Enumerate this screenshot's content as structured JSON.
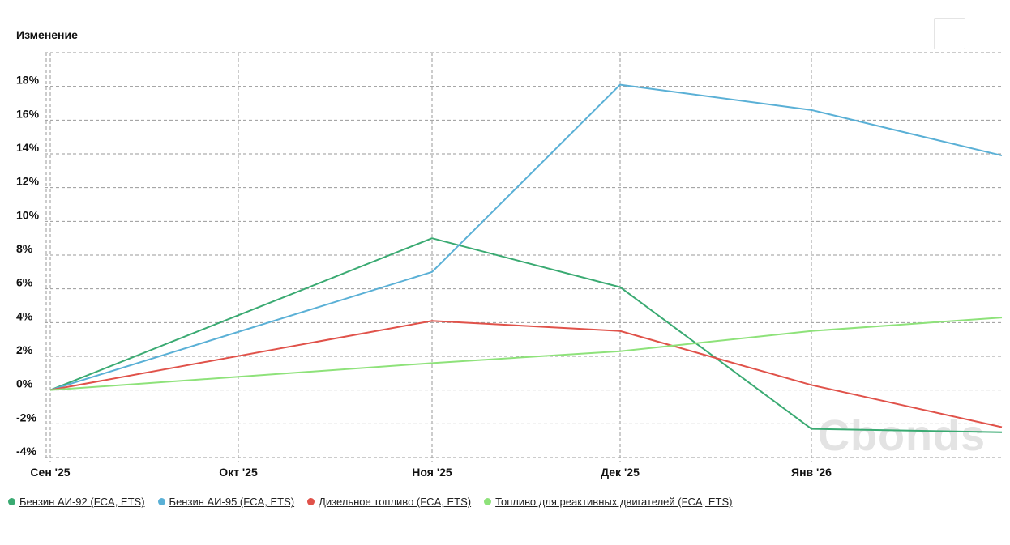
{
  "chart_data": {
    "type": "line",
    "ylabel": "Изменение",
    "x": [
      "Сен '25",
      "Окт '25",
      "Ноя '25",
      "Дек '25",
      "Янв '26",
      ""
    ],
    "x_ticks": [
      "Сен '25",
      "Окт '25",
      "Ноя '25",
      "Дек '25",
      "Янв '26"
    ],
    "y_ticks": [
      "-4%",
      "-2%",
      "0%",
      "2%",
      "4%",
      "6%",
      "8%",
      "10%",
      "12%",
      "14%",
      "16%",
      "18%"
    ],
    "ylim": [
      -4,
      20
    ],
    "grid": true,
    "legend_position": "bottom-left",
    "series": [
      {
        "name": "Бензин АИ-92 (FCA, ETS)",
        "color": "#3aaa72",
        "points": [
          [
            "Сен '25",
            0.0
          ],
          [
            "Ноя '25",
            9.0
          ],
          [
            "Дек '25",
            6.1
          ],
          [
            "Янв '26",
            -2.3
          ],
          [
            "",
            -2.5
          ]
        ]
      },
      {
        "name": "Бензин АИ-95 (FCA, ETS)",
        "color": "#5ab0d6",
        "points": [
          [
            "Сен '25",
            0.0
          ],
          [
            "Ноя '25",
            7.0
          ],
          [
            "Дек '25",
            18.1
          ],
          [
            "Янв '26",
            16.6
          ],
          [
            "",
            13.9
          ]
        ]
      },
      {
        "name": "Дизельное топливо (FCA, ETS)",
        "color": "#e0524a",
        "points": [
          [
            "Сен '25",
            0.0
          ],
          [
            "Ноя '25",
            4.1
          ],
          [
            "Дек '25",
            3.5
          ],
          [
            "Янв '26",
            0.3
          ],
          [
            "",
            -2.2
          ]
        ]
      },
      {
        "name": "Топливо для реактивных двигателей (FCA, ETS)",
        "color": "#8ee27a",
        "points": [
          [
            "Сен '25",
            0.0
          ],
          [
            "Ноя '25",
            1.6
          ],
          [
            "Дек '25",
            2.3
          ],
          [
            "Янв '26",
            3.5
          ],
          [
            "",
            4.3
          ]
        ]
      }
    ]
  },
  "watermark": "Cbonds"
}
